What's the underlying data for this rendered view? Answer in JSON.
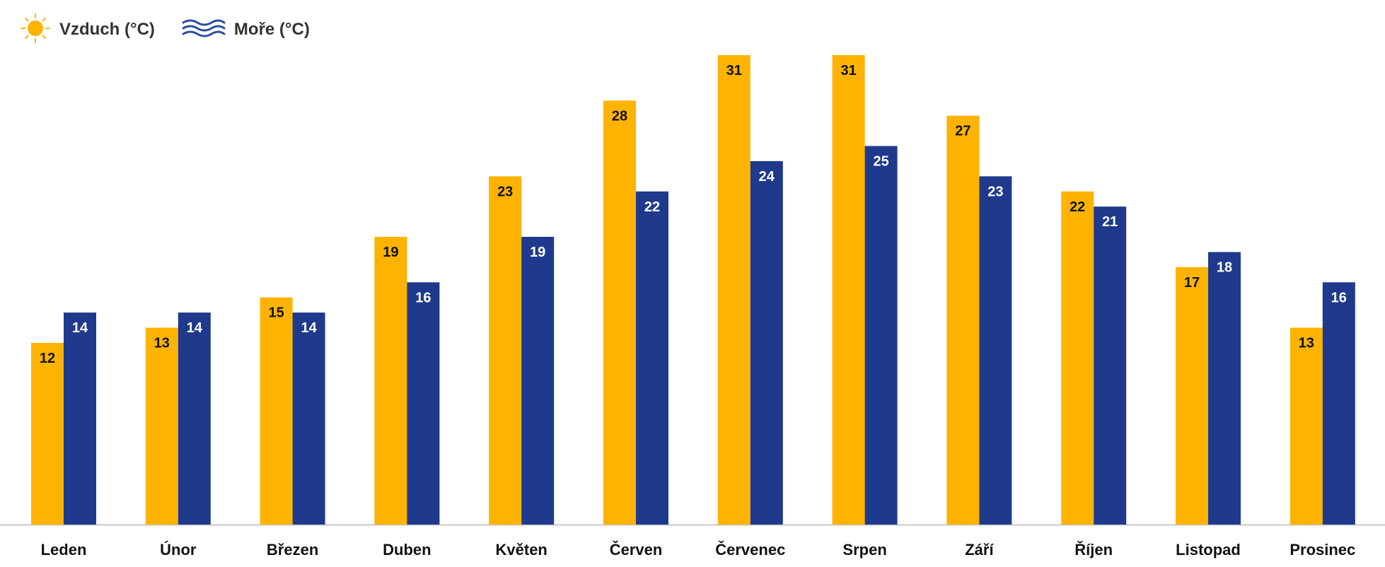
{
  "legend": {
    "air_label": "Vzduch (°C)",
    "sea_label": "Moře (°C)",
    "air_icon": "sun-icon",
    "sea_icon": "waves-icon"
  },
  "colors": {
    "air": "#FDB300",
    "sea": "#1F3A8C",
    "air_label_text": "#111111",
    "sea_label_text": "#ffffff",
    "baseline": "#c8c8c8"
  },
  "chart_data": {
    "type": "bar",
    "title": "",
    "xlabel": "",
    "ylabel": "",
    "ylim": [
      0,
      31
    ],
    "grid": false,
    "legend_position": "top-left",
    "categories": [
      "Leden",
      "Únor",
      "Březen",
      "Duben",
      "Květen",
      "Červen",
      "Červenec",
      "Srpen",
      "Září",
      "Říjen",
      "Listopad",
      "Prosinec"
    ],
    "series": [
      {
        "name": "Vzduch (°C)",
        "values": [
          12,
          13,
          15,
          19,
          23,
          28,
          31,
          31,
          27,
          22,
          17,
          13
        ]
      },
      {
        "name": "Moře (°C)",
        "values": [
          14,
          14,
          14,
          16,
          19,
          22,
          24,
          25,
          23,
          21,
          18,
          16
        ]
      }
    ]
  }
}
